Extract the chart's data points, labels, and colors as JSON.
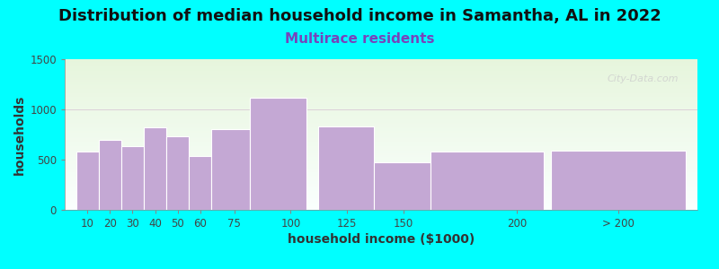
{
  "title": "Distribution of median household income in Samantha, AL in 2022",
  "subtitle": "Multirace residents",
  "xlabel": "household income ($1000)",
  "ylabel": "households",
  "background_color": "#00FFFF",
  "bar_color": "#C4A8D4",
  "bar_edgecolor": "#FFFFFF",
  "categories": [
    "10",
    "20",
    "30",
    "40",
    "50",
    "60",
    "75",
    "100",
    "125",
    "150",
    "200",
    "> 200"
  ],
  "bar_lefts": [
    5,
    15,
    25,
    35,
    45,
    55,
    65,
    82,
    112,
    137,
    162,
    215
  ],
  "bar_widths": [
    10,
    10,
    10,
    10,
    10,
    10,
    17,
    25,
    25,
    25,
    50,
    60
  ],
  "values": [
    580,
    700,
    630,
    820,
    730,
    540,
    800,
    1120,
    830,
    470,
    580,
    590
  ],
  "xlim": [
    0,
    280
  ],
  "ylim": [
    0,
    1500
  ],
  "yticks": [
    0,
    500,
    1000,
    1500
  ],
  "xtick_positions": [
    10,
    20,
    30,
    40,
    50,
    60,
    75,
    100,
    125,
    150,
    200,
    245
  ],
  "xtick_labels": [
    "10",
    "20",
    "30",
    "40",
    "50",
    "60",
    "75",
    "100",
    "125",
    "150",
    "200",
    "> 200"
  ],
  "title_fontsize": 13,
  "subtitle_fontsize": 11,
  "subtitle_color": "#7744BB",
  "axis_label_fontsize": 10,
  "tick_fontsize": 8.5,
  "watermark_text": "City-Data.com",
  "bg_gradient_top": "#E6F5DC",
  "bg_gradient_bottom": "#FAFFFE"
}
